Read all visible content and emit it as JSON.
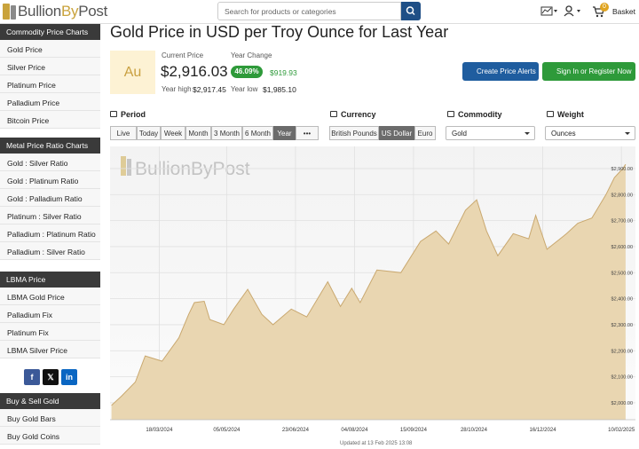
{
  "header": {
    "logo": [
      "Bullion",
      "By",
      "Post"
    ],
    "search_placeholder": "Search for products or categories",
    "basket_count": "0",
    "basket_label": "Basket"
  },
  "sidebar": [
    {
      "title": "Commodity Price Charts",
      "items": [
        "Gold Price",
        "Silver Price",
        "Platinum Price",
        "Palladium Price",
        "Bitcoin Price"
      ]
    },
    {
      "title": "Metal Price Ratio Charts",
      "items": [
        "Gold : Silver Ratio",
        "Gold : Platinum Ratio",
        "Gold : Palladium Ratio",
        "Platinum : Silver Ratio",
        "Palladium : Platinum Ratio",
        "Palladium : Silver Ratio"
      ]
    },
    {
      "title": "LBMA Price",
      "items": [
        "LBMA Gold Price",
        "Palladium Fix",
        "Platinum Fix",
        "LBMA Silver Price"
      ]
    },
    {
      "title": "Buy & Sell Gold",
      "items": [
        "Buy Gold Bars",
        "Buy Gold Coins"
      ]
    }
  ],
  "social": [
    "f",
    "𝕏",
    "in"
  ],
  "main": {
    "title": "Gold Price in USD per Troy Ounce for Last Year",
    "metal_symbol": "Au",
    "current_price_label": "Current Price",
    "current_price": "$2,916.03",
    "year_change_label": "Year Change",
    "year_change_pct": "46.09%",
    "year_change_amount": "$919.93",
    "year_high_label": "Year high",
    "year_high": "$2,917.45",
    "year_low_label": "Year low",
    "year_low": "$1,985.10",
    "buttons": [
      "Create Price Alerts",
      "Sign In or Register Now"
    ]
  },
  "controls": {
    "period": {
      "label": "Period",
      "options": [
        "Live",
        "Today",
        "Week",
        "Month",
        "3 Month",
        "6 Month",
        "Year",
        "•••"
      ],
      "selected": 6
    },
    "currency": {
      "label": "Currency",
      "options": [
        "British Pounds",
        "US Dollar",
        "Euro"
      ],
      "selected": 1
    },
    "commodity": {
      "label": "Commodity",
      "value": "Gold"
    },
    "weight": {
      "label": "Weight",
      "value": "Ounces"
    }
  },
  "chart_data": {
    "type": "area",
    "watermark": "BullionByPost",
    "color": "#e9d6b1",
    "line_color": "#c9a86f",
    "grid": true,
    "x": [
      "2024-02-13",
      "2024-02-20",
      "2024-03-01",
      "2024-03-08",
      "2024-03-20",
      "2024-04-01",
      "2024-04-08",
      "2024-04-12",
      "2024-04-19",
      "2024-04-23",
      "2024-05-03",
      "2024-05-10",
      "2024-05-20",
      "2024-05-30",
      "2024-06-07",
      "2024-06-20",
      "2024-07-01",
      "2024-07-16",
      "2024-07-25",
      "2024-08-02",
      "2024-08-08",
      "2024-08-20",
      "2024-09-06",
      "2024-09-20",
      "2024-10-01",
      "2024-10-10",
      "2024-10-22",
      "2024-10-30",
      "2024-11-06",
      "2024-11-14",
      "2024-11-25",
      "2024-12-06",
      "2024-12-11",
      "2024-12-19",
      "2025-01-02",
      "2025-01-10",
      "2025-01-20",
      "2025-01-30",
      "2025-02-05",
      "2025-02-11",
      "2025-02-13"
    ],
    "values": [
      1990,
      2025,
      2080,
      2180,
      2160,
      2250,
      2340,
      2385,
      2390,
      2320,
      2300,
      2360,
      2436,
      2340,
      2300,
      2360,
      2330,
      2465,
      2370,
      2440,
      2385,
      2510,
      2500,
      2620,
      2660,
      2610,
      2740,
      2780,
      2660,
      2565,
      2650,
      2630,
      2720,
      2590,
      2650,
      2690,
      2710,
      2800,
      2865,
      2900,
      2916
    ],
    "xlim": [
      "2024-02-12",
      "2025-02-20"
    ],
    "xticks": [
      {
        "value": "2024-03-18",
        "label": "18/03/2024"
      },
      {
        "value": "2024-05-05",
        "label": "05/05/2024"
      },
      {
        "value": "2024-06-23",
        "label": "23/06/2024"
      },
      {
        "value": "2024-08-04",
        "label": "04/08/2024"
      },
      {
        "value": "2024-09-15",
        "label": "15/09/2024"
      },
      {
        "value": "2024-10-28",
        "label": "28/10/2024"
      },
      {
        "value": "2024-12-16",
        "label": "16/12/2024"
      },
      {
        "value": "2025-02-10",
        "label": "10/02/2025"
      }
    ],
    "ylim": [
      1935,
      2985
    ],
    "yticks": [
      {
        "value": 2000,
        "label": "$2,000.00"
      },
      {
        "value": 2100,
        "label": "$2,100.00"
      },
      {
        "value": 2200,
        "label": "$2,200.00"
      },
      {
        "value": 2300,
        "label": "$2,300.00"
      },
      {
        "value": 2400,
        "label": "$2,400.00"
      },
      {
        "value": 2500,
        "label": "$2,500.00"
      },
      {
        "value": 2600,
        "label": "$2,600.00"
      },
      {
        "value": 2700,
        "label": "$2,700.00"
      },
      {
        "value": 2800,
        "label": "$2,800.00"
      },
      {
        "value": 2900,
        "label": "$2,900.00"
      }
    ]
  },
  "footer": {
    "updated": "Updated at 13 Feb 2025 13:08"
  }
}
